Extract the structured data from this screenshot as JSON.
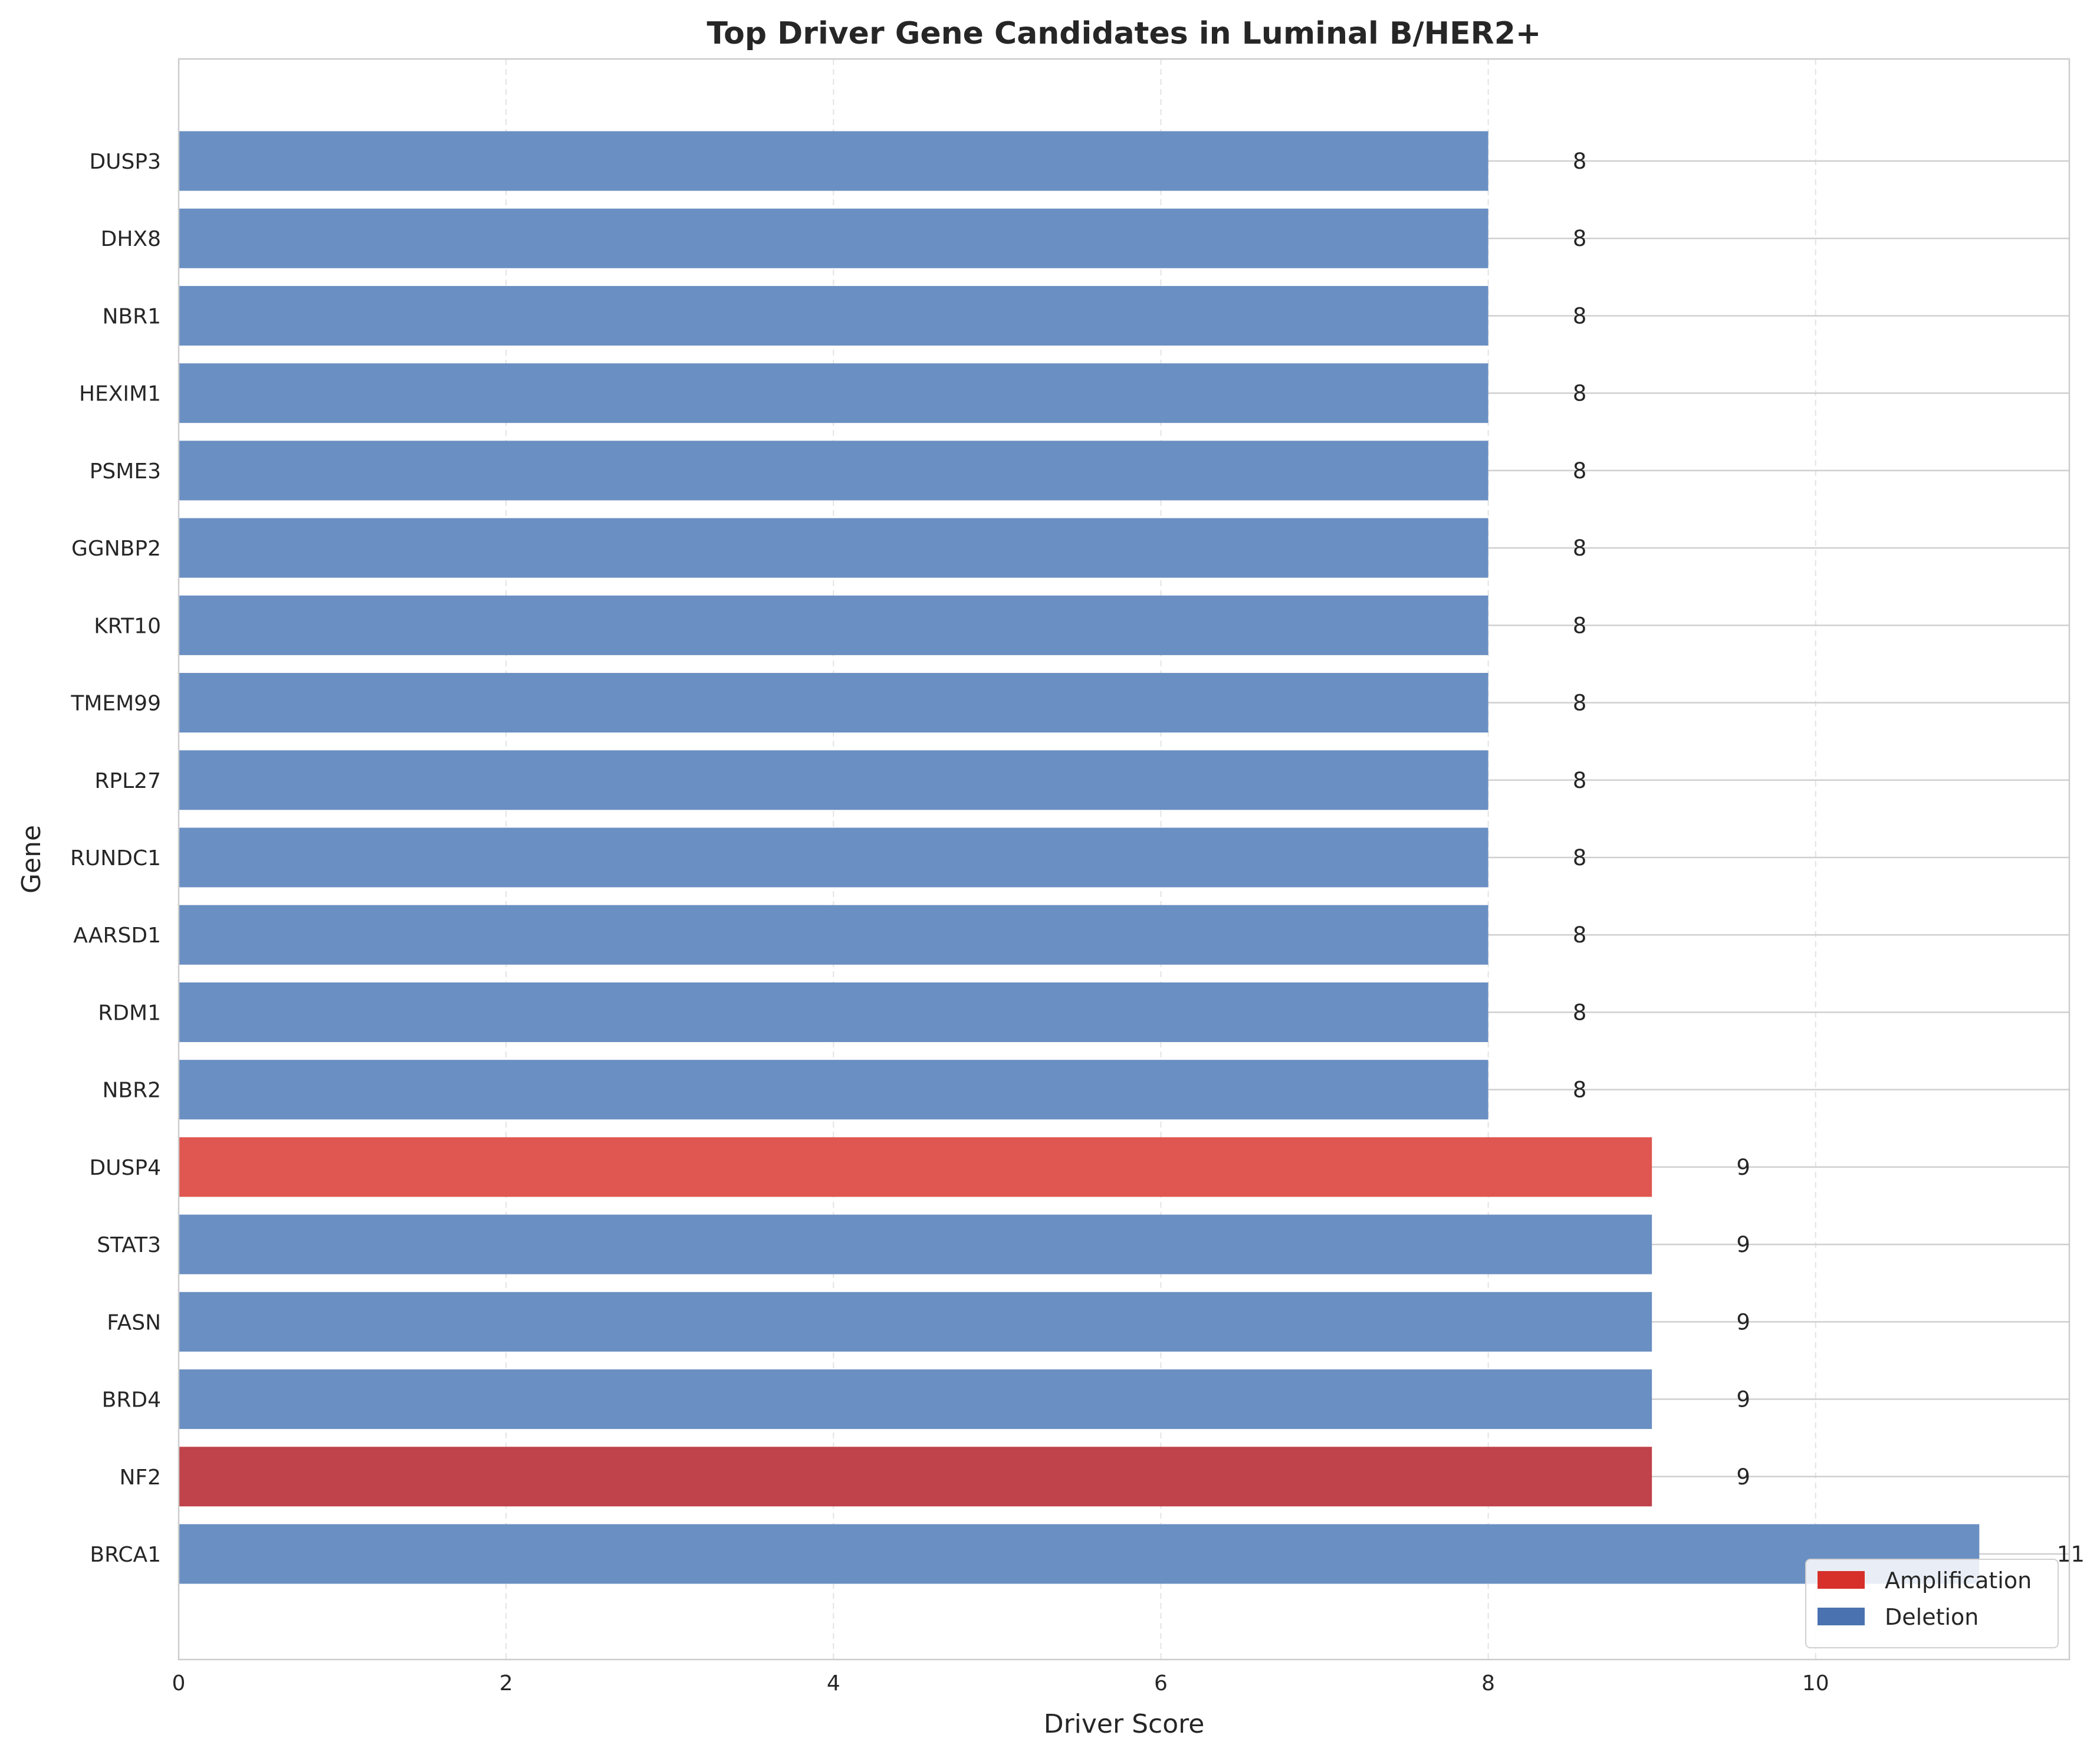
{
  "chart_data": {
    "type": "bar",
    "orientation": "horizontal",
    "title": "Top Driver Gene Candidates in Luminal B/HER2+",
    "xlabel": "Driver Score",
    "ylabel": "Gene",
    "xlim": [
      0,
      11.55
    ],
    "xticks": [
      0,
      2,
      4,
      6,
      8,
      10
    ],
    "grid": true,
    "categories": [
      "DUSP3",
      "DHX8",
      "NBR1",
      "HEXIM1",
      "PSME3",
      "GGNBP2",
      "KRT10",
      "TMEM99",
      "RPL27",
      "RUNDC1",
      "AARSD1",
      "RDM1",
      "NBR2",
      "DUSP4",
      "STAT3",
      "FASN",
      "BRD4",
      "NF2",
      "BRCA1"
    ],
    "values": [
      8,
      8,
      8,
      8,
      8,
      8,
      8,
      8,
      8,
      8,
      8,
      8,
      8,
      9,
      9,
      9,
      9,
      9,
      11
    ],
    "types": [
      "Deletion",
      "Deletion",
      "Deletion",
      "Deletion",
      "Deletion",
      "Deletion",
      "Deletion",
      "Deletion",
      "Deletion",
      "Deletion",
      "Deletion",
      "Deletion",
      "Deletion",
      "Amplification",
      "Deletion",
      "Deletion",
      "Deletion",
      "Amplification",
      "Deletion"
    ],
    "bar_colors": [
      "#6a8fc2",
      "#6a8fc2",
      "#6a8fc2",
      "#6a8fc2",
      "#6a8fc2",
      "#6a8fc2",
      "#6a8fc2",
      "#6a8fc2",
      "#6a8fc2",
      "#6a8fc2",
      "#6a8fc2",
      "#6a8fc2",
      "#6a8fc2",
      "#e05650",
      "#6a8fc2",
      "#6a8fc2",
      "#6a8fc2",
      "#c0424a",
      "#6a8fc2"
    ],
    "legend": {
      "position": "bottom-right",
      "entries": [
        {
          "label": "Amplification",
          "color": "#d7302a"
        },
        {
          "label": "Deletion",
          "color": "#4a72b0"
        }
      ]
    }
  }
}
